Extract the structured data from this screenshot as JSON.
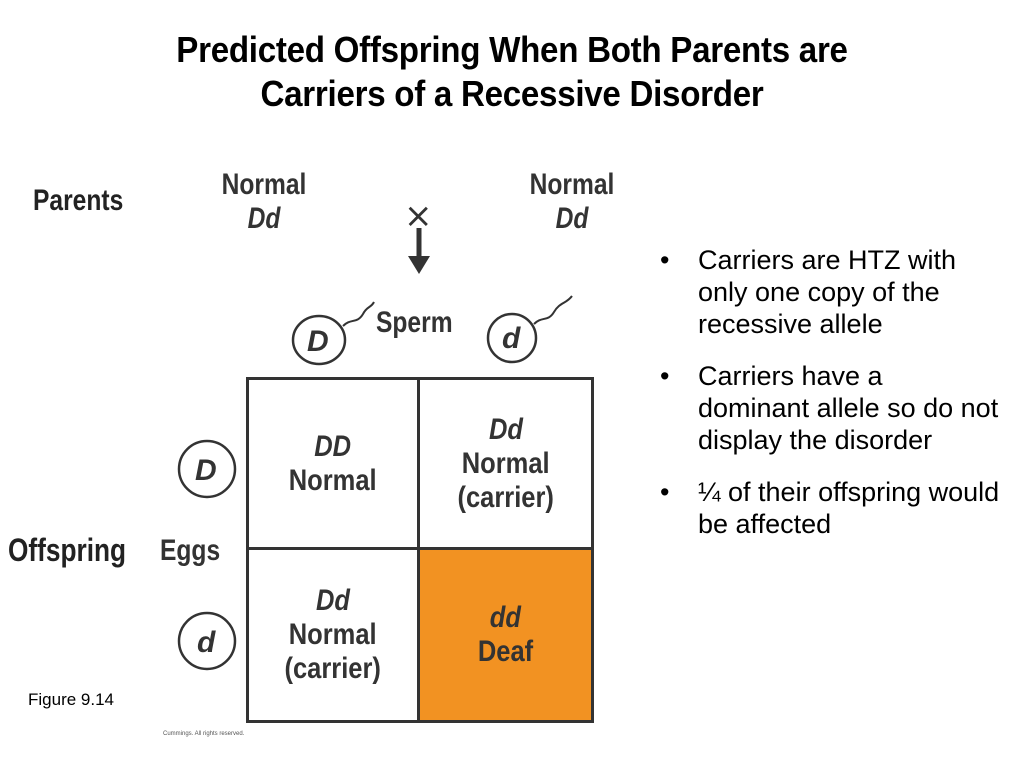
{
  "title": {
    "line1": "Predicted Offspring When Both Parents are",
    "line2": "Carriers  of a Recessive Disorder"
  },
  "diagram": {
    "parents_label": "Parents",
    "parent_left": {
      "phenotype": "Normal",
      "genotype": "Dd"
    },
    "parent_right": {
      "phenotype": "Normal",
      "genotype": "Dd"
    },
    "cross_symbol": "×",
    "sperm_label": "Sperm",
    "sperm_alleles": [
      "D",
      "d"
    ],
    "eggs_label": "Eggs",
    "egg_alleles": [
      "D",
      "d"
    ],
    "offspring_label": "Offspring",
    "cells": [
      {
        "genotype": "DD",
        "phenotype": "Normal",
        "note": ""
      },
      {
        "genotype": "Dd",
        "phenotype": "Normal",
        "note": "(carrier)"
      },
      {
        "genotype": "Dd",
        "phenotype": "Normal",
        "note": "(carrier)"
      },
      {
        "genotype": "dd",
        "phenotype": "Deaf",
        "note": ""
      }
    ],
    "highlight_color": "#f29222"
  },
  "figure_label": "Figure 9.14",
  "credit": "Cummings. All rights reserved.",
  "bullets": [
    "Carriers are HTZ with only one copy of the recessive allele",
    "Carriers have a dominant allele so do not display the disorder",
    "¼ of their offspring would be affected"
  ]
}
